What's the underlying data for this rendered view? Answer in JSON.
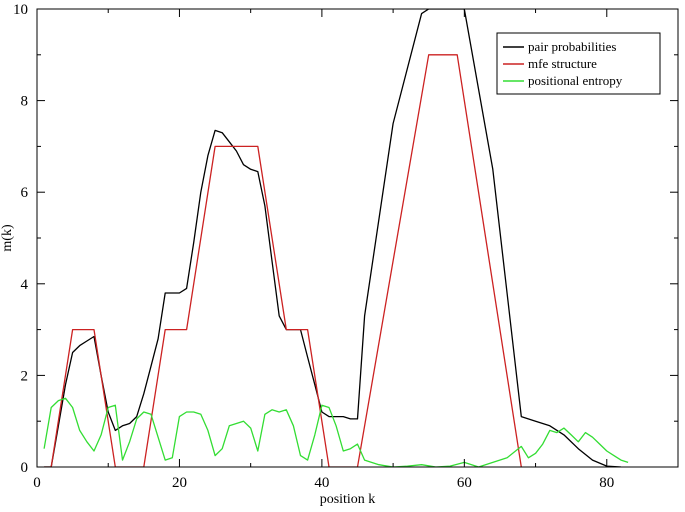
{
  "chart_data": {
    "type": "line",
    "title": "",
    "xlabel": "position k",
    "ylabel": "m(k)",
    "xlim": [
      0,
      90
    ],
    "ylim": [
      0,
      10
    ],
    "xticks": [
      0,
      20,
      40,
      60,
      80
    ],
    "yticks": [
      0,
      2,
      4,
      6,
      8,
      10
    ],
    "grid": false,
    "legend_position": "top-right",
    "series": [
      {
        "name": "pair probabilities",
        "color": "#000000",
        "x": [
          1,
          2,
          3,
          4,
          5,
          6,
          7,
          8,
          9,
          10,
          11,
          12,
          13,
          14,
          15,
          16,
          17,
          18,
          19,
          20,
          21,
          22,
          23,
          24,
          25,
          26,
          27,
          28,
          29,
          30,
          31,
          32,
          33,
          34,
          35,
          36,
          37,
          38,
          39,
          40,
          41,
          42,
          43,
          44,
          45,
          46,
          50,
          54,
          55,
          56,
          57,
          58,
          59,
          60,
          64,
          68,
          70,
          72,
          74,
          76,
          78,
          80,
          82
        ],
        "y": [
          0,
          0,
          0.9,
          1.8,
          2.5,
          2.65,
          2.75,
          2.85,
          2.0,
          1.2,
          0.8,
          0.9,
          0.95,
          1.1,
          1.6,
          2.2,
          2.8,
          3.8,
          3.8,
          3.8,
          3.9,
          4.9,
          6.0,
          6.8,
          7.35,
          7.3,
          7.1,
          6.9,
          6.6,
          6.5,
          6.45,
          5.7,
          4.5,
          3.3,
          3.0,
          3.0,
          3.0,
          2.4,
          1.8,
          1.2,
          1.1,
          1.1,
          1.1,
          1.05,
          1.05,
          3.3,
          7.5,
          9.9,
          10,
          10,
          10,
          10,
          10,
          10,
          6.5,
          1.1,
          1.0,
          0.9,
          0.7,
          0.4,
          0.15,
          0.02,
          0
        ]
      },
      {
        "name": "mfe structure",
        "color": "#cc2222",
        "x": [
          1,
          2,
          5,
          8,
          11,
          15,
          18,
          21,
          25,
          31,
          35,
          38,
          41,
          45,
          55,
          59,
          68
        ],
        "y": [
          0,
          0,
          3,
          3,
          0,
          0,
          3,
          3,
          7,
          7,
          3,
          3,
          0,
          0,
          9,
          9,
          0
        ]
      },
      {
        "name": "positional entropy",
        "color": "#33dd33",
        "x": [
          1,
          2,
          3,
          4,
          5,
          6,
          7,
          8,
          9,
          10,
          11,
          12,
          13,
          14,
          15,
          16,
          17,
          18,
          19,
          20,
          21,
          22,
          23,
          24,
          25,
          26,
          27,
          28,
          29,
          30,
          31,
          32,
          33,
          34,
          35,
          36,
          37,
          38,
          39,
          40,
          41,
          42,
          43,
          44,
          45,
          46,
          48,
          50,
          52,
          54,
          56,
          58,
          60,
          62,
          64,
          66,
          68,
          69,
          70,
          71,
          72,
          73,
          74,
          75,
          76,
          77,
          78,
          79,
          80,
          81,
          82,
          83
        ],
        "y": [
          0.4,
          1.3,
          1.45,
          1.5,
          1.3,
          0.8,
          0.55,
          0.35,
          0.7,
          1.3,
          1.35,
          0.15,
          0.55,
          1.05,
          1.2,
          1.15,
          0.65,
          0.15,
          0.2,
          1.1,
          1.2,
          1.2,
          1.15,
          0.8,
          0.25,
          0.4,
          0.9,
          0.95,
          1.0,
          0.85,
          0.35,
          1.15,
          1.25,
          1.2,
          1.25,
          0.9,
          0.25,
          0.15,
          0.7,
          1.35,
          1.3,
          0.9,
          0.35,
          0.4,
          0.5,
          0.15,
          0.05,
          0.0,
          0.02,
          0.05,
          0.0,
          0.02,
          0.1,
          0.0,
          0.1,
          0.2,
          0.45,
          0.2,
          0.3,
          0.5,
          0.8,
          0.75,
          0.85,
          0.7,
          0.55,
          0.75,
          0.65,
          0.5,
          0.35,
          0.25,
          0.15,
          0.1
        ]
      }
    ]
  }
}
